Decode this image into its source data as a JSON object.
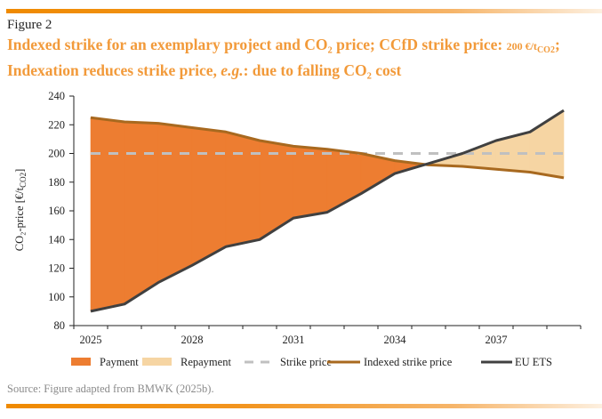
{
  "header": {
    "figure_label": "Figure 2",
    "title_line1_a": "Indexed strike for an exemplary project and CO₂ price; CCfD strike price: ",
    "title_line1_small": "200 €/t",
    "title_line1_sub": "CO2",
    "title_line1_end": ";",
    "title_line2_a": "Indexation reduces strike price, ",
    "title_line2_em": "e.g.",
    "title_line2_b": ": due to falling CO₂ cost"
  },
  "source": "Source: Figure adapted from BMWK (2025b).",
  "colors": {
    "payment": "#ed7d31",
    "repayment": "#f6d5a3",
    "strike": "#c0c0c0",
    "indexed": "#a8691f",
    "ets": "#404040",
    "brand_orange": "#f29a3a"
  },
  "chart_data": {
    "type": "area",
    "title": "Indexed strike for an exemplary project and CO2 price",
    "xlabel": "",
    "ylabel": "CO₂-price [€/t",
    "ylabel_sub": "CO2",
    "ylabel_end": "]",
    "ylim": [
      80,
      240
    ],
    "yticks": [
      80,
      100,
      120,
      140,
      160,
      180,
      200,
      220,
      240
    ],
    "x": [
      2025,
      2026,
      2027,
      2028,
      2029,
      2030,
      2031,
      2032,
      2033,
      2034,
      2035,
      2036,
      2037,
      2038,
      2039
    ],
    "xtick_labels": [
      "2025",
      "2028",
      "2031",
      "2034",
      "2037"
    ],
    "series": [
      {
        "name": "Strike price",
        "style": "dashed",
        "values": [
          200,
          200,
          200,
          200,
          200,
          200,
          200,
          200,
          200,
          200,
          200,
          200,
          200,
          200,
          200
        ]
      },
      {
        "name": "Indexed strike price",
        "style": "line",
        "values": [
          225,
          222,
          221,
          218,
          215,
          209,
          205,
          203,
          200,
          195,
          192,
          191,
          189,
          187,
          183
        ]
      },
      {
        "name": "EU ETS",
        "style": "line",
        "values": [
          90,
          95,
          110,
          122,
          135,
          140,
          155,
          159,
          172,
          186,
          193,
          200,
          209,
          215,
          230
        ]
      }
    ],
    "areas": [
      {
        "name": "Payment",
        "description": "area between indexed strike price and EU ETS where indexed > ETS"
      },
      {
        "name": "Repayment",
        "description": "area between EU ETS and indexed strike price where ETS > indexed"
      }
    ],
    "legend": [
      "Payment",
      "Repayment",
      "Strike price",
      "Indexed strike price",
      "EU ETS"
    ],
    "legend_position": "bottom",
    "grid": false
  }
}
